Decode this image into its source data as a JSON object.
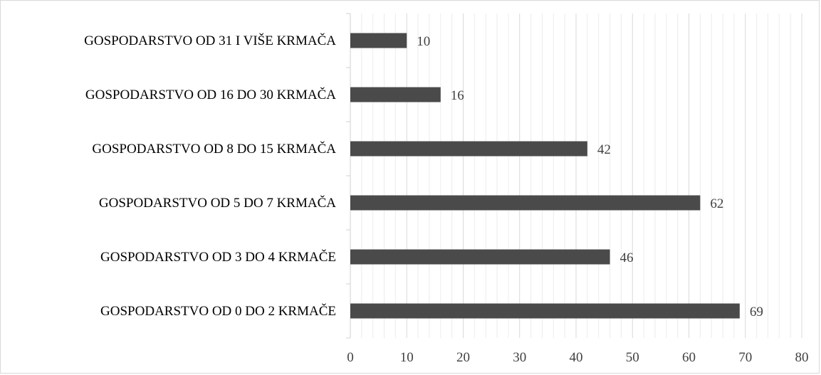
{
  "chart_data": {
    "type": "bar",
    "orientation": "horizontal",
    "title": "",
    "xlabel": "",
    "ylabel": "",
    "categories": [
      "GOSPODARSTVO OD 0 DO 2 KRMAČE",
      "GOSPODARSTVO OD 3 DO 4 KRMAČE",
      "GOSPODARSTVO OD 5 DO 7 KRMAČA",
      "GOSPODARSTVO OD 8 DO 15 KRMAČA",
      "GOSPODARSTVO OD 16 DO 30 KRMAČA",
      "GOSPODARSTVO OD 31 I VIŠE KRMAČA"
    ],
    "values": [
      69,
      46,
      62,
      42,
      16,
      10
    ],
    "xlim": [
      0,
      80
    ],
    "xticks": [
      0,
      10,
      20,
      30,
      40,
      50,
      60,
      70,
      80
    ],
    "major_grid": true,
    "minor_grid": true,
    "legend": "none",
    "bar_color": "#4a4a4a",
    "grid_color": "#d9d9d9"
  }
}
